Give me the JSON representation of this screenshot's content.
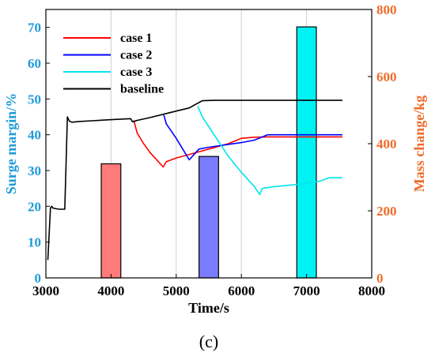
{
  "chart_data": {
    "type": "line",
    "xlabel": "Time/s",
    "ylabel_left": "Surge margin/%",
    "ylabel_right": "Mass change/kg",
    "panel_label": "(c)",
    "xlim": [
      3000,
      8000
    ],
    "ylim_left": [
      0,
      75
    ],
    "ylim_right": [
      0,
      800
    ],
    "x_ticks": [
      3000,
      4000,
      5000,
      6000,
      7000,
      8000
    ],
    "y_left_ticks": [
      0,
      10,
      20,
      30,
      40,
      50,
      60,
      70
    ],
    "y_right_ticks": [
      0,
      200,
      400,
      600,
      800
    ],
    "grid": "x-only",
    "legend_position": "top-left",
    "colors": {
      "left_axis": "#1f9bd7",
      "right_axis": "#f06c2a"
    },
    "series": [
      {
        "name": "case 1",
        "color": "#ff0000",
        "x": [
          4350,
          4400,
          4500,
          4600,
          4700,
          4800,
          4850,
          5000,
          5200,
          5500,
          5800,
          6000,
          6200,
          6400,
          7000,
          7550
        ],
        "y": [
          44.0,
          40.5,
          37.5,
          35.0,
          33.0,
          31.0,
          32.5,
          33.5,
          34.5,
          36.0,
          37.5,
          39.0,
          39.3,
          39.4,
          39.4,
          39.4
        ]
      },
      {
        "name": "case 2",
        "color": "#0000ff",
        "x": [
          4810,
          4850,
          5000,
          5100,
          5200,
          5300,
          5350,
          5500,
          6000,
          6200,
          6400,
          7000,
          7550
        ],
        "y": [
          45.5,
          43.0,
          39.0,
          36.0,
          33.0,
          35.0,
          36.0,
          36.5,
          37.8,
          38.5,
          40.0,
          40.0,
          40.0
        ]
      },
      {
        "name": "case 3",
        "color": "#00e5ee",
        "x": [
          5330,
          5400,
          5600,
          5800,
          6000,
          6200,
          6280,
          6320,
          6500,
          6800,
          7000,
          7200,
          7350,
          7550
        ],
        "y": [
          48.0,
          45.0,
          39.5,
          34.0,
          29.5,
          25.5,
          23.3,
          25.0,
          25.5,
          26.0,
          26.5,
          27.0,
          28.0,
          28.0
        ]
      },
      {
        "name": "baseline",
        "color": "#000000",
        "x": [
          3030,
          3070,
          3090,
          3110,
          3200,
          3290,
          3330,
          3360,
          3400,
          3500,
          3700,
          4000,
          4300,
          4330,
          4400,
          4600,
          4800,
          5000,
          5200,
          5300,
          5400,
          5600,
          6000,
          7000,
          7550
        ],
        "y": [
          5.0,
          19.5,
          20.0,
          19.5,
          19.2,
          19.2,
          45.0,
          43.8,
          43.5,
          43.7,
          43.9,
          44.2,
          44.5,
          43.6,
          44.0,
          44.8,
          45.7,
          46.6,
          47.5,
          48.5,
          49.5,
          49.6,
          49.6,
          49.6,
          49.6
        ]
      }
    ],
    "bars": [
      {
        "x_start": 3850,
        "x_end": 4150,
        "value": 340,
        "color": "#ff7a7a"
      },
      {
        "x_start": 5350,
        "x_end": 5650,
        "value": 362,
        "color": "#7b7bff"
      },
      {
        "x_start": 6850,
        "x_end": 7150,
        "value": 748,
        "color": "#00f2f2"
      }
    ]
  }
}
